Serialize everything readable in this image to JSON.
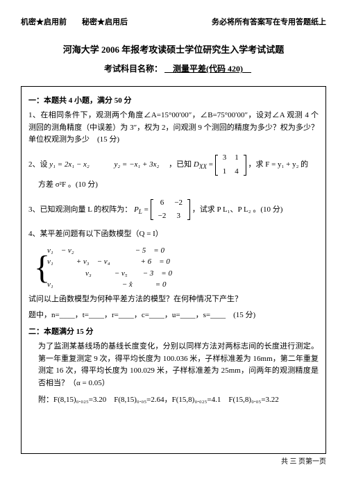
{
  "header": {
    "left": "机密★启用前　　秘密★启用后",
    "right": "务必将所有答案写在专用答题纸上"
  },
  "title": "河海大学 2006 年报考攻读硕士学位研究生入学考试试题",
  "subject_label": "考试科目名称：",
  "subject": "测量平差(代码 420)",
  "sec1": "一：本题共 4 小题，满分 50 分",
  "q1": "1、在相同条件下，观测两个角度∠A=15°00′00″，∠B=75°00′00″，设对∠A 观测 4 个测回的测角精度（中误差）为 3″，权为 2，问观测 9 个测回的精度为多少？权为多少？单位权观测为多少　(15 分)",
  "q2_pre": "2、设",
  "q2_y1": "y₁ = 2x₁ − x₂",
  "q2_y2": "y₂ = −x₁ + 3x₂",
  "q2_mid": "，已知",
  "q2_dxx": "D",
  "q2_xx": "XX",
  "q2_eq": " = ",
  "q2_m": {
    "a": "3",
    "b": "1",
    "c": "1",
    "d": "4"
  },
  "q2_post": "，求 F = y₁ + y₂ 的",
  "q2_line2": "方差 σ²F 。(10 分)",
  "q3_pre": "3、已知观测向量 L 的权阵为：",
  "q3_pl": "P",
  "q3_l": "L",
  "q3_eq": " = ",
  "q3_m": {
    "a": "6",
    "b": "−2",
    "c": "−2",
    "d": "3"
  },
  "q3_post": "，试求 P L₁、P L₂ 。(10 分)",
  "q4": "4、某平差问题有以下函数模型（Q = I）",
  "sys": {
    "r1": "v₁　− v₂　　　　　　　　− 5　= 0",
    "r2": "v₁　　　+ v₃　− v₄　　　　+ 6　= 0",
    "r3": "　　　　　v₃　　　− v₅　　− 3　= 0",
    "r4": "v₁　　　　　　　　　− x̂　　　= 0"
  },
  "q4b": "试问以上函数模型为何种平差方法的模型？在何种情况下产生？",
  "q4c": "题中，n=____，t=____，r=____，c=____，u=____，s=____　(15 分)",
  "sec2": "二：本题满分 15 分",
  "q5a": "为了监测某基线场的基线长度变化，分别以同样方法对两标志间的长度进行测定。第一年重复测定 9 次，得平均长度为 100.036 米，子样标准差为 16mm，第二年重复测定 16 次，得平均长度为 100.029 米，子样标准差为 25mm，问两年的观测精度是否相当？（α = 0.05）",
  "q5b": "附：F(8,15)₀.₀₂₅=3.20　F(8,15)₀.₀₅=2.64，F(15,8)₀.₀₂₅=4.1　F(15,8)₀.₀₅=3.22",
  "footer": "共 三 页第一页"
}
